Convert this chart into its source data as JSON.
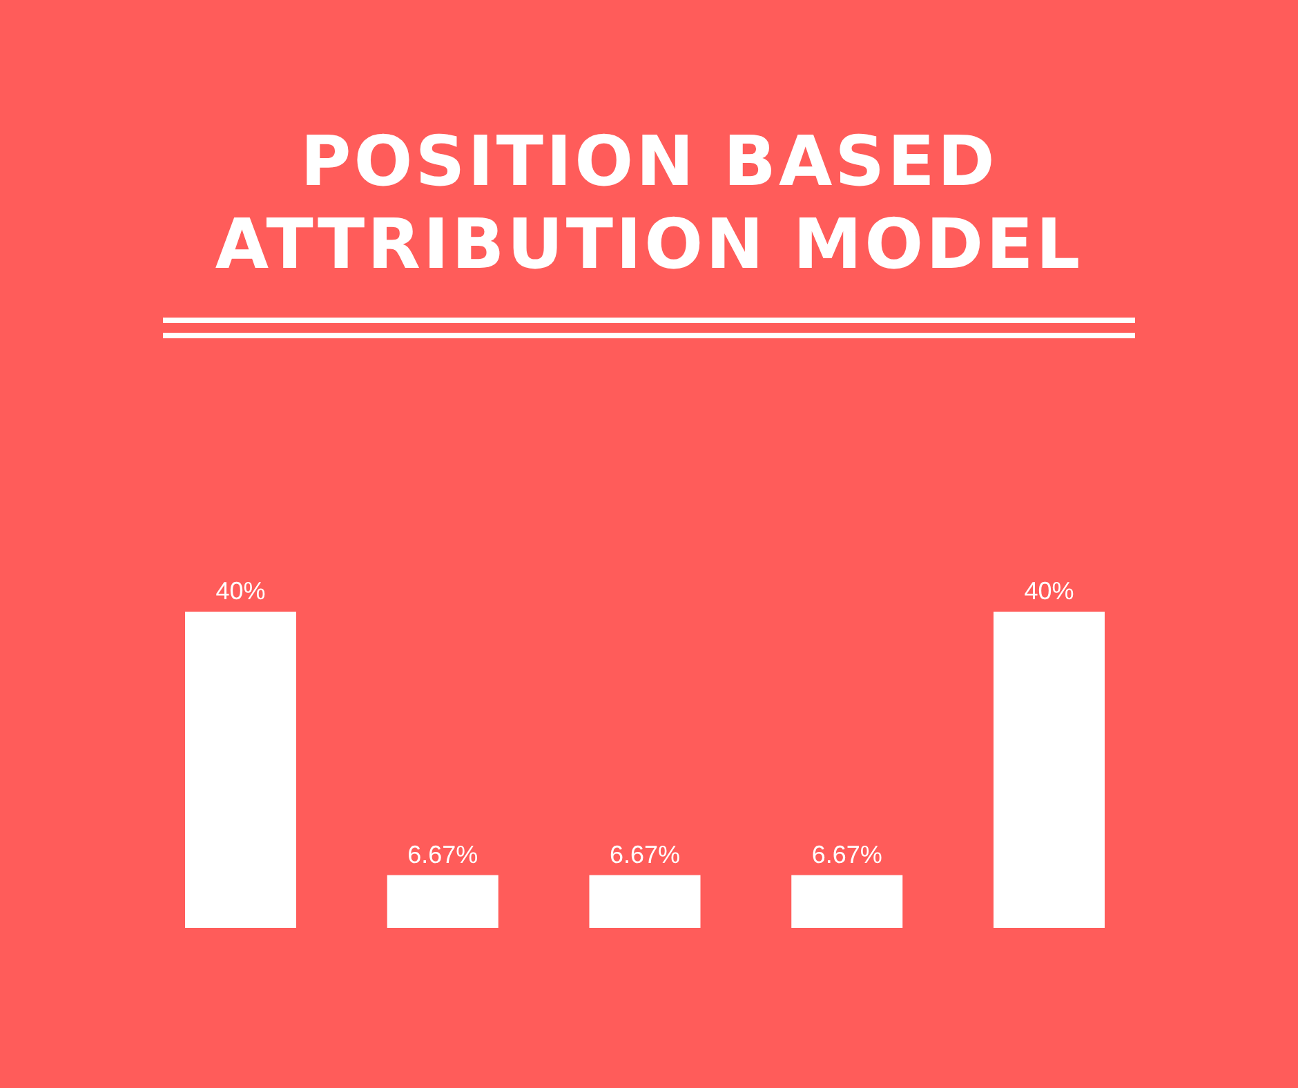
{
  "chart_data": {
    "type": "bar",
    "title": "POSITION BASED ATTRIBUTION MODEL",
    "categories": [
      null,
      null,
      null,
      null,
      null
    ],
    "values": [
      40,
      6.67,
      6.67,
      6.67,
      40
    ],
    "color": "#ffffff",
    "value_labels": [
      "40%",
      "6.67%",
      "6.67%",
      "6.67%",
      "40%"
    ],
    "grid": false
  }
}
